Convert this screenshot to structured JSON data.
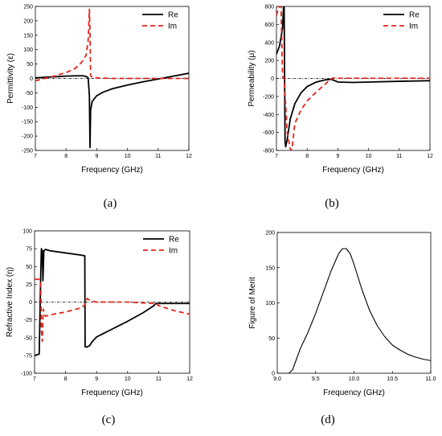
{
  "figure": {
    "panels": [
      {
        "id": "a",
        "panel_label": "(a)"
      },
      {
        "id": "b",
        "panel_label": "(b)"
      },
      {
        "id": "c",
        "panel_label": "(c)"
      },
      {
        "id": "d",
        "panel_label": "(d)"
      }
    ]
  },
  "colors": {
    "re": "#000000",
    "im": "#e8231c",
    "zero_line": "#000000"
  },
  "chart_data": [
    {
      "id": "a",
      "type": "line",
      "xlabel": "Frequency (GHz)",
      "ylabel": "Permittivity (ε)",
      "xlim": [
        7,
        12
      ],
      "ylim": [
        -250,
        250
      ],
      "xticks": [
        7,
        8,
        9,
        10,
        11,
        12
      ],
      "yticks": [
        -250,
        -200,
        -150,
        -100,
        -50,
        0,
        50,
        100,
        150,
        200,
        250
      ],
      "legend": "top-right",
      "zero_line": true,
      "series": [
        {
          "name": "Re",
          "style": "solid",
          "x": [
            7.0,
            7.5,
            8.0,
            8.3,
            8.55,
            8.65,
            8.72,
            8.76,
            8.78,
            8.8,
            8.85,
            9.0,
            9.2,
            9.5,
            10.0,
            10.5,
            11.0,
            11.5,
            12.0
          ],
          "y": [
            2,
            5,
            8,
            9,
            9,
            7,
            2,
            -60,
            -240,
            -110,
            -80,
            -60,
            -48,
            -36,
            -23,
            -12,
            -2,
            8,
            18
          ]
        },
        {
          "name": "Im",
          "style": "dashed",
          "x": [
            7.0,
            7.5,
            8.0,
            8.3,
            8.5,
            8.65,
            8.72,
            8.76,
            8.78,
            8.8,
            8.85,
            9.0,
            9.5,
            10.0,
            11.0,
            12.0
          ],
          "y": [
            -8,
            5,
            20,
            35,
            55,
            80,
            130,
            240,
            160,
            10,
            4,
            2,
            0,
            0,
            0,
            0
          ]
        }
      ]
    },
    {
      "id": "b",
      "type": "line",
      "xlabel": "Frequency (GHz)",
      "ylabel": "Permeability (μ)",
      "xlim": [
        7,
        12
      ],
      "ylim": [
        -800,
        800
      ],
      "xticks": [
        7,
        8,
        9,
        10,
        11,
        12
      ],
      "yticks": [
        -800,
        -600,
        -400,
        -200,
        0,
        200,
        400,
        600,
        800
      ],
      "legend": "top-right",
      "zero_line": true,
      "series": [
        {
          "name": "Re",
          "style": "solid",
          "x": [
            7.0,
            7.1,
            7.2,
            7.23,
            7.25,
            7.28,
            7.3,
            7.35,
            7.45,
            7.6,
            7.8,
            8.0,
            8.3,
            8.6,
            8.8,
            9.0,
            9.5,
            10.0,
            11.0,
            12.0
          ],
          "y": [
            270,
            360,
            560,
            800,
            800,
            -700,
            -760,
            -680,
            -450,
            -280,
            -160,
            -90,
            -40,
            -15,
            -10,
            -40,
            -45,
            -40,
            -32,
            -25
          ]
        },
        {
          "name": "Im",
          "style": "dashed",
          "x": [
            7.0,
            7.05,
            7.1,
            7.15,
            7.2,
            7.25,
            7.35,
            7.45,
            7.5,
            7.6,
            7.8,
            8.0,
            8.3,
            8.6,
            8.75,
            8.85,
            9.0,
            10.0,
            11.0,
            12.0
          ],
          "y": [
            700,
            760,
            800,
            800,
            20,
            0,
            -600,
            -780,
            -800,
            -500,
            -350,
            -250,
            -150,
            -60,
            -10,
            5,
            2,
            2,
            2,
            2
          ]
        }
      ]
    },
    {
      "id": "c",
      "type": "line",
      "xlabel": "Frequency (GHz)",
      "ylabel": "Refractive Index (η)",
      "xlim": [
        7,
        12
      ],
      "ylim": [
        -100,
        100
      ],
      "xticks": [
        7,
        8,
        9,
        10,
        11,
        12
      ],
      "yticks": [
        -100,
        -75,
        -50,
        -25,
        0,
        25,
        50,
        75,
        100
      ],
      "legend": "top-right",
      "zero_line": true,
      "series": [
        {
          "name": "Re",
          "style": "solid",
          "x": [
            7.0,
            7.15,
            7.2,
            7.22,
            7.25,
            7.27,
            7.3,
            7.35,
            7.5,
            8.0,
            8.5,
            8.62,
            8.63,
            8.7,
            8.78,
            8.85,
            9.0,
            9.5,
            10.0,
            10.5,
            10.85,
            10.9,
            11.0,
            11.5,
            12.0
          ],
          "y": [
            -75,
            -73,
            40,
            75,
            72,
            30,
            72,
            74,
            72,
            69,
            66,
            65,
            -63,
            -63,
            -61,
            -56,
            -49,
            -38,
            -27,
            -15,
            -5,
            -2,
            -2,
            -2,
            -2
          ]
        },
        {
          "name": "Im",
          "style": "dashed",
          "x": [
            7.0,
            7.15,
            7.2,
            7.22,
            7.25,
            7.28,
            7.35,
            7.5,
            8.0,
            8.5,
            8.6,
            8.7,
            8.8,
            9.0,
            10.0,
            10.8,
            10.9,
            11.0,
            11.5,
            12.0
          ],
          "y": [
            32,
            32,
            25,
            -40,
            -55,
            -10,
            -20,
            -18,
            -14,
            -8,
            -5,
            5,
            2,
            0,
            0,
            -2,
            -1,
            -5,
            -12,
            -17
          ]
        }
      ]
    },
    {
      "id": "d",
      "type": "line",
      "xlabel": "Frequency (GHz)",
      "ylabel": "Figure of Merit",
      "xlim": [
        9.0,
        11.0
      ],
      "ylim": [
        0,
        200
      ],
      "xticks": [
        9.0,
        9.5,
        10.0,
        10.5,
        11.0
      ],
      "xtick_labels": [
        "9.0",
        "9.5",
        "10.0",
        "10.5",
        "11.0"
      ],
      "yticks": [
        0,
        50,
        100,
        150,
        200
      ],
      "legend": "none",
      "zero_line": false,
      "series": [
        {
          "style": "solid",
          "x": [
            9.0,
            9.1,
            9.15,
            9.2,
            9.25,
            9.3,
            9.4,
            9.5,
            9.6,
            9.7,
            9.8,
            9.85,
            9.9,
            9.95,
            10.0,
            10.1,
            10.2,
            10.3,
            10.4,
            10.5,
            10.6,
            10.7,
            10.8,
            10.9,
            11.0
          ],
          "y": [
            0,
            0,
            0,
            5,
            20,
            35,
            58,
            85,
            115,
            145,
            170,
            177,
            177,
            170,
            155,
            120,
            90,
            68,
            52,
            40,
            33,
            27,
            23,
            20,
            18
          ]
        }
      ]
    }
  ]
}
